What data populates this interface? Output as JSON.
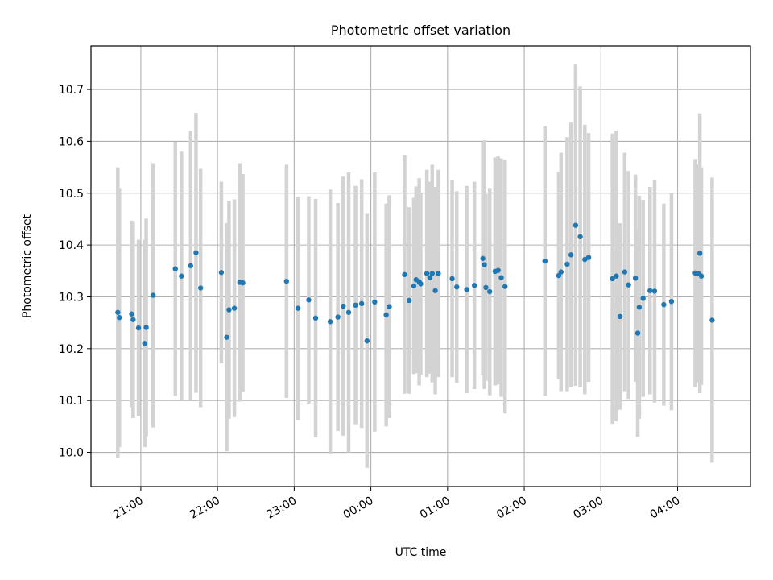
{
  "chart_data": {
    "type": "scatter",
    "title": "Photometric offset variation",
    "xlabel": "UTC time",
    "ylabel": "Photometric offset",
    "x_unit": "hours (UTC, clock time; values past 24 continue into the next day)",
    "xlim": [
      20.35,
      28.95
    ],
    "ylim": [
      9.934,
      10.784
    ],
    "grid": true,
    "x_ticks": [
      {
        "value": 21,
        "label": "21:00"
      },
      {
        "value": 22,
        "label": "22:00"
      },
      {
        "value": 23,
        "label": "23:00"
      },
      {
        "value": 24,
        "label": "00:00"
      },
      {
        "value": 25,
        "label": "01:00"
      },
      {
        "value": 26,
        "label": "02:00"
      },
      {
        "value": 27,
        "label": "03:00"
      },
      {
        "value": 28,
        "label": "04:00"
      }
    ],
    "y_ticks": [
      {
        "value": 10.0,
        "label": "10.0"
      },
      {
        "value": 10.1,
        "label": "10.1"
      },
      {
        "value": 10.2,
        "label": "10.2"
      },
      {
        "value": 10.3,
        "label": "10.3"
      },
      {
        "value": 10.4,
        "label": "10.4"
      },
      {
        "value": 10.5,
        "label": "10.5"
      },
      {
        "value": 10.6,
        "label": "10.6"
      },
      {
        "value": 10.7,
        "label": "10.7"
      }
    ],
    "colors": {
      "point": "#1f77b4",
      "errorbar": "#d3d3d3",
      "grid": "#b0b0b0"
    },
    "series": [
      {
        "x": [
          20.7,
          20.72,
          20.88,
          20.9,
          20.97,
          21.05,
          21.07,
          21.16,
          21.45,
          21.53,
          21.65,
          21.72,
          21.78,
          22.05,
          22.12,
          22.15,
          22.22,
          22.29,
          22.33,
          22.9,
          23.05,
          23.19,
          23.28,
          23.47,
          23.57,
          23.64,
          23.71,
          23.8,
          23.88,
          23.95,
          24.05,
          24.2,
          24.24,
          24.44,
          24.5,
          24.56,
          24.59,
          24.63,
          24.65,
          24.73,
          24.77,
          24.8,
          24.84,
          24.88,
          25.06,
          25.12,
          25.25,
          25.35,
          25.46,
          25.48,
          25.5,
          25.55,
          25.62,
          25.66,
          25.7,
          25.75,
          26.27,
          26.45,
          26.48,
          26.56,
          26.61,
          26.67,
          26.73,
          26.79,
          26.84,
          27.15,
          27.2,
          27.25,
          27.31,
          27.36,
          27.45,
          27.48,
          27.5,
          27.55,
          27.64,
          27.7,
          27.82,
          27.92,
          28.23,
          28.27,
          28.29,
          28.31,
          28.45
        ],
        "y": [
          10.27,
          10.26,
          10.267,
          10.256,
          10.24,
          10.21,
          10.241,
          10.303,
          10.354,
          10.34,
          10.36,
          10.385,
          10.317,
          10.347,
          10.222,
          10.275,
          10.278,
          10.328,
          10.327,
          10.33,
          10.278,
          10.294,
          10.259,
          10.252,
          10.261,
          10.282,
          10.27,
          10.284,
          10.287,
          10.215,
          10.29,
          10.265,
          10.281,
          10.343,
          10.293,
          10.321,
          10.333,
          10.329,
          10.325,
          10.345,
          10.337,
          10.345,
          10.312,
          10.345,
          10.335,
          10.319,
          10.314,
          10.322,
          10.374,
          10.362,
          10.318,
          10.31,
          10.349,
          10.351,
          10.337,
          10.32,
          10.369,
          10.341,
          10.348,
          10.363,
          10.381,
          10.438,
          10.416,
          10.372,
          10.376,
          10.335,
          10.34,
          10.262,
          10.348,
          10.323,
          10.336,
          10.23,
          10.28,
          10.297,
          10.312,
          10.311,
          10.285,
          10.291,
          10.346,
          10.345,
          10.384,
          10.34,
          10.255
        ],
        "err": [
          0.28,
          0.25,
          0.18,
          0.19,
          0.17,
          0.2,
          0.21,
          0.255,
          0.245,
          0.24,
          0.26,
          0.27,
          0.23,
          0.175,
          0.22,
          0.21,
          0.21,
          0.23,
          0.21,
          0.225,
          0.215,
          0.2,
          0.23,
          0.255,
          0.22,
          0.25,
          0.27,
          0.23,
          0.24,
          0.245,
          0.25,
          0.215,
          0.215,
          0.23,
          0.18,
          0.17,
          0.18,
          0.2,
          0.175,
          0.2,
          0.185,
          0.21,
          0.2,
          0.2,
          0.19,
          0.185,
          0.2,
          0.2,
          0.225,
          0.24,
          0.18,
          0.2,
          0.22,
          0.22,
          0.23,
          0.245,
          0.26,
          0.2,
          0.23,
          0.245,
          0.255,
          0.31,
          0.29,
          0.26,
          0.24,
          0.28,
          0.28,
          0.18,
          0.23,
          0.22,
          0.2,
          0.2,
          0.215,
          0.19,
          0.2,
          0.215,
          0.195,
          0.21,
          0.22,
          0.21,
          0.27,
          0.21,
          0.275
        ]
      }
    ]
  }
}
